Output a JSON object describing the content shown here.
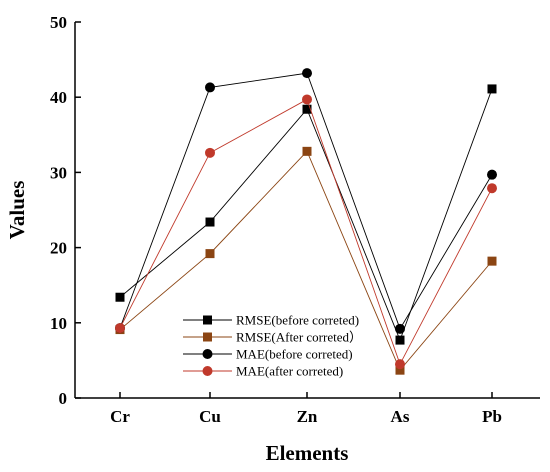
{
  "chart_data": {
    "type": "line",
    "categories": [
      "Cr",
      "Cu",
      "Zn",
      "As",
      "Pb"
    ],
    "series": [
      {
        "name": "RMSE(before correted)",
        "marker": "square",
        "color": "#000000",
        "values": [
          13.4,
          23.4,
          38.4,
          7.7,
          41.1
        ]
      },
      {
        "name": "RMSE(After correted）",
        "marker": "square",
        "color": "#8B4513",
        "values": [
          9.1,
          19.2,
          32.8,
          3.7,
          18.2
        ]
      },
      {
        "name": "MAE(before correted)",
        "marker": "circle",
        "color": "#000000",
        "values": [
          9.3,
          41.3,
          43.2,
          9.2,
          29.7
        ]
      },
      {
        "name": "MAE(after correted)",
        "marker": "circle",
        "color": "#C0392B",
        "values": [
          9.3,
          32.6,
          39.7,
          4.5,
          27.9
        ]
      }
    ],
    "xlabel": "Elements",
    "ylabel": "Values",
    "ylim": [
      0,
      50
    ],
    "yticks": [
      "0",
      "10",
      "20",
      "30",
      "40",
      "50"
    ],
    "grid": false,
    "legend_position": "bottom-center"
  }
}
